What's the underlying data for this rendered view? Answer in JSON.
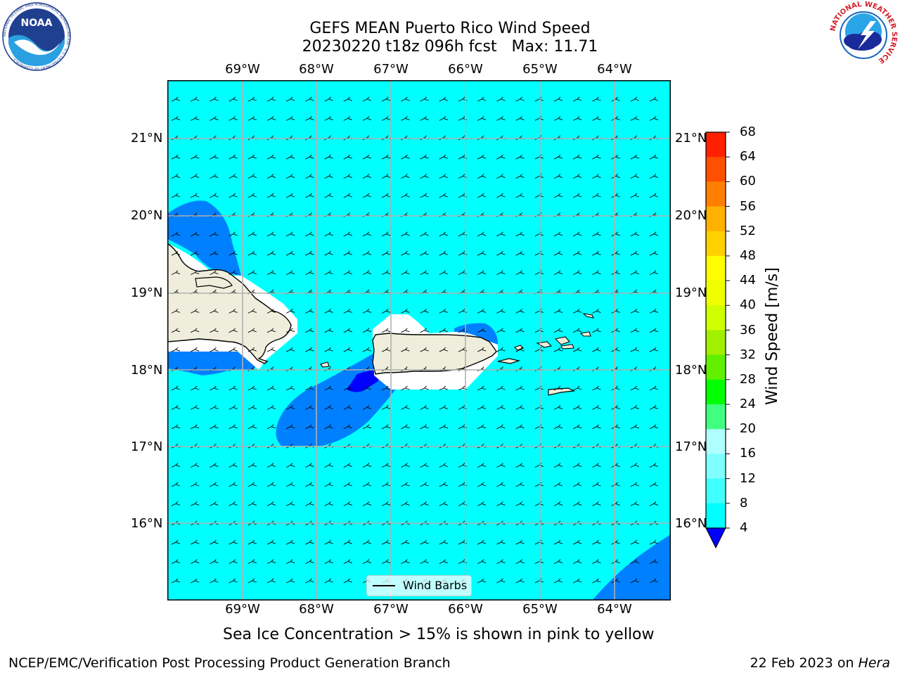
{
  "title": {
    "line1": "GEFS MEAN Puerto Rico Wind Speed",
    "line2": "20230220 t18z 096h fcst   Max: 11.71"
  },
  "logos": {
    "noaa_text": "NOAA",
    "noaa_ring": "NATIONAL OCEANIC AND ATMOSPHERIC ADMINISTRATION · U.S. DEPARTMENT OF COMMERCE",
    "nws_ring": "NATIONAL WEATHER SERVICE"
  },
  "map": {
    "lon_labels": [
      "69°W",
      "68°W",
      "67°W",
      "66°W",
      "65°W",
      "64°W"
    ],
    "lat_labels": [
      "21°N",
      "20°N",
      "19°N",
      "18°N",
      "17°N",
      "16°N"
    ],
    "legend_label": "Wind Barbs",
    "colors": {
      "ocean": "#00ffff",
      "band_4_8": "#0080ff",
      "band_below_4": "#0000ff",
      "land": "#efeedc",
      "gridline": "#b0b0b0"
    }
  },
  "colorbar": {
    "label": "Wind Speed [m/s]",
    "ticks": [
      "4",
      "8",
      "12",
      "16",
      "20",
      "24",
      "28",
      "32",
      "36",
      "40",
      "44",
      "48",
      "52",
      "56",
      "60",
      "64",
      "68"
    ],
    "colors": [
      "#0080ff",
      "#00ffff",
      "#40ffff",
      "#80ffff",
      "#b0ffff",
      "#40ff80",
      "#00ff00",
      "#60f000",
      "#a0f000",
      "#d0ff00",
      "#f0ff00",
      "#ffff00",
      "#ffd000",
      "#ffb000",
      "#ff8000",
      "#ff5000",
      "#ff2000",
      "#ff0000"
    ],
    "under_color": "#0000ff"
  },
  "subtitle": "Sea Ice Concentration > 15% is shown in pink to yellow",
  "footer": {
    "left": "NCEP/EMC/Verification Post Processing Product Generation Branch",
    "right_date": "22 Feb 2023 on ",
    "right_host": "Hera"
  }
}
